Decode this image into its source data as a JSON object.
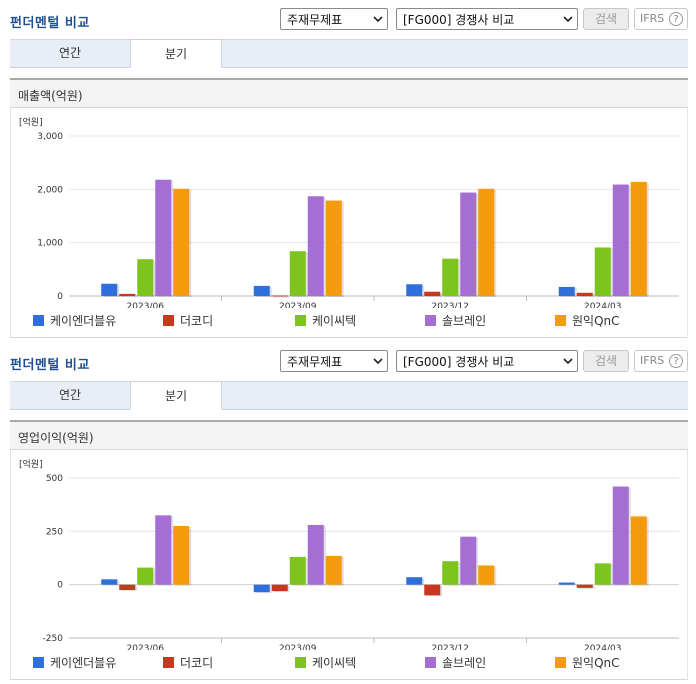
{
  "sections": [
    {
      "title": "펀더멘털 비교",
      "select1": "주재무제표",
      "select2": "[FG000] 경쟁사 비교",
      "search_label": "검색",
      "ifrs_label": "IFRS",
      "help_glyph": "?",
      "tabs": [
        {
          "label": "연간",
          "active": false
        },
        {
          "label": "분기",
          "active": true
        }
      ],
      "metric_title": "매출액(억원)"
    },
    {
      "title": "펀더멘털 비교",
      "select1": "주재무제표",
      "select2": "[FG000] 경쟁사 비교",
      "search_label": "검색",
      "ifrs_label": "IFRS",
      "help_glyph": "?",
      "tabs": [
        {
          "label": "연간",
          "active": false
        },
        {
          "label": "분기",
          "active": true
        }
      ],
      "metric_title": "영업이익(억원)"
    }
  ],
  "colors": {
    "series": [
      "#2f6fdb",
      "#c8371f",
      "#7dc41f",
      "#a56ed3",
      "#f59a0b"
    ],
    "header_title": "#1e4f93"
  },
  "icons": {
    "dropdown": "chevron-down-icon",
    "help": "question-circle-icon"
  },
  "chart_data": [
    {
      "type": "bar",
      "unit_label": "[억원]",
      "categories": [
        "2023/06",
        "2023/09",
        "2023/12",
        "2024/03"
      ],
      "ylim": [
        0,
        3000
      ],
      "yticks": [
        0,
        1000,
        2000,
        3000
      ],
      "ytick_labels": [
        "0",
        "1,000",
        "2,000",
        "3,000"
      ],
      "grid": true,
      "legend_position": "bottom",
      "series": [
        {
          "name": "케이엔더블유",
          "values": [
            230,
            190,
            220,
            170
          ]
        },
        {
          "name": "더코디",
          "values": [
            40,
            10,
            80,
            60
          ]
        },
        {
          "name": "케이씨텍",
          "values": [
            690,
            840,
            700,
            910
          ]
        },
        {
          "name": "솔브레인",
          "values": [
            2180,
            1870,
            1940,
            2090
          ]
        },
        {
          "name": "원익QnC",
          "values": [
            2010,
            1790,
            2010,
            2140
          ]
        }
      ]
    },
    {
      "type": "bar",
      "unit_label": "[억원]",
      "categories": [
        "2023/06",
        "2023/09",
        "2023/12",
        "2024/03"
      ],
      "ylim": [
        -250,
        500
      ],
      "yticks": [
        -250,
        0,
        250,
        500
      ],
      "ytick_labels": [
        "-250",
        "0",
        "250",
        "500"
      ],
      "grid": true,
      "legend_position": "bottom",
      "series": [
        {
          "name": "케이엔더블유",
          "values": [
            25,
            -35,
            35,
            10
          ]
        },
        {
          "name": "더코디",
          "values": [
            -25,
            -30,
            -50,
            -15
          ]
        },
        {
          "name": "케이씨텍",
          "values": [
            80,
            130,
            110,
            100
          ]
        },
        {
          "name": "솔브레인",
          "values": [
            325,
            280,
            225,
            460
          ]
        },
        {
          "name": "원익QnC",
          "values": [
            275,
            135,
            90,
            320
          ]
        }
      ]
    }
  ]
}
